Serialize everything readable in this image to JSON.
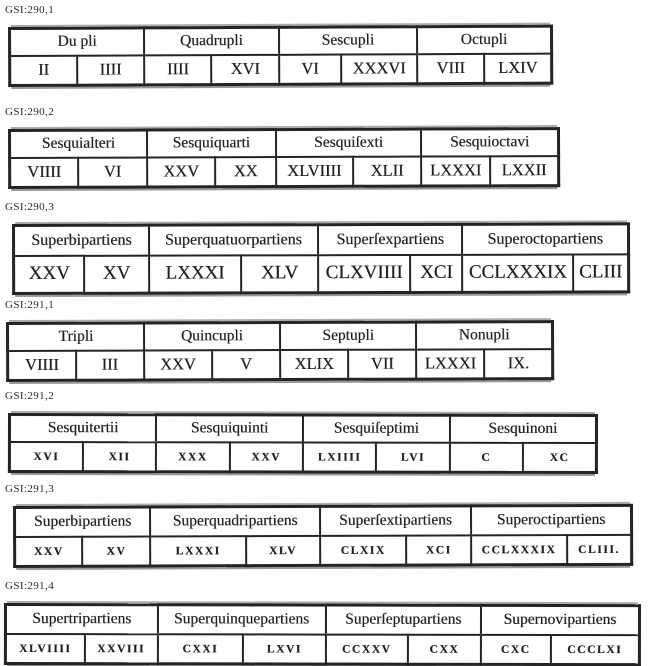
{
  "page": {
    "paper_color": "#ffffff",
    "ink_color": "#1e1e1e"
  },
  "blocks": [
    {
      "label": "GSI:290,1",
      "headers": [
        "Du pli",
        "Quadrupli",
        "Sescupli",
        "Octupli"
      ],
      "values": [
        "II",
        "IIII",
        "IIII",
        "XVI",
        "VI",
        "XXXVI",
        "VIII",
        "LXIV"
      ]
    },
    {
      "label": "GSI:290,2",
      "headers": [
        "Sesquialteri",
        "Sesquiquarti",
        "Sesquiſexti",
        "Sesquioctavi"
      ],
      "values": [
        "VIIII",
        "VI",
        "XXV",
        "XX",
        "XLVIIII",
        "XLII",
        "LXXXI",
        "LXXII"
      ]
    },
    {
      "label": "GSI:290,3",
      "headers": [
        "Superbipartiens",
        "Superquatuorpartiens",
        "Superſexpartiens",
        "Superoctopartiens"
      ],
      "values": [
        "XXV",
        "XV",
        "LXXXI",
        "XLV",
        "CLXVIIII",
        "XCI",
        "CCLXXXIX",
        "CLIII"
      ]
    },
    {
      "label": "GSI:291,1",
      "headers": [
        "Tripli",
        "Quincupli",
        "Septupli",
        "Nonupli"
      ],
      "values": [
        "VIIII",
        "III",
        "XXV",
        "V",
        "XLIX",
        "VII",
        "LXXXI",
        "IX."
      ]
    },
    {
      "label": "GSI:291,2",
      "headers": [
        "Sesquitertii",
        "Sesquiquinti",
        "Sesquiſeptimi",
        "Sesquinoni"
      ],
      "values": [
        "XVI",
        "XII",
        "XXX",
        "XXV",
        "LXIIII",
        "LVI",
        "C",
        "XC"
      ]
    },
    {
      "label": "GSI:291,3",
      "headers": [
        "Superbipartiens",
        "Superquadripartiens",
        "Superſextipartiens",
        "Superoctipartiens"
      ],
      "values": [
        "XXV",
        "XV",
        "LXXXI",
        "XLV",
        "CLXIX",
        "XCI",
        "CCLXXXIX",
        "CLIII."
      ]
    },
    {
      "label": "GSI:291,4",
      "headers": [
        "Supertripartiens",
        "Superquinquepartiens",
        "Superſeptupartiens",
        "Supernovipartiens"
      ],
      "values": [
        "XLVIIII",
        "XXVIII",
        "CXXI",
        "LXVI",
        "CCXXV",
        "CXX",
        "CXC",
        "CCCLXI"
      ]
    }
  ]
}
